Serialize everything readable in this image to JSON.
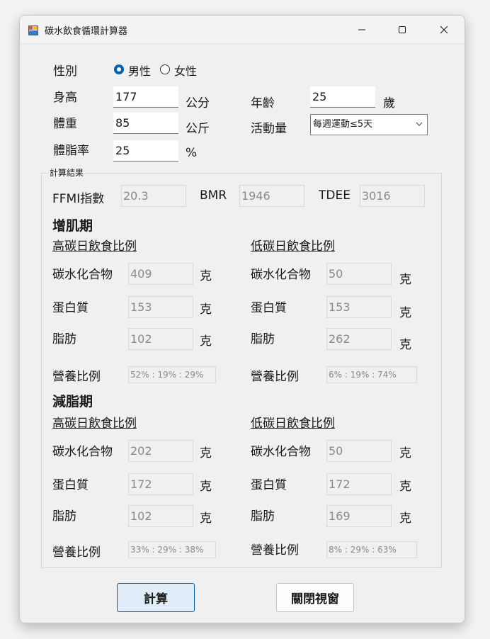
{
  "window": {
    "title": "碳水飲食循環計算器",
    "minimize_glyph": "—",
    "maximize_glyph": "☐",
    "close_glyph": "✕"
  },
  "form": {
    "gender_label": "性別",
    "gender_options": [
      "男性",
      "女性"
    ],
    "gender_selected": "男性",
    "height_label": "身高",
    "height_value": "177",
    "height_unit": "公分",
    "age_label": "年齡",
    "age_value": "25",
    "age_unit": "歲",
    "weight_label": "體重",
    "weight_value": "85",
    "weight_unit": "公斤",
    "activity_label": "活動量",
    "activity_selected": "每週運動≤5天",
    "bodyfat_label": "體脂率",
    "bodyfat_value": "25",
    "bodyfat_unit": "%"
  },
  "results": {
    "group_title": "計算結果",
    "ffmi_label": "FFMI指數",
    "ffmi_value": "20.3",
    "bmr_label": "BMR",
    "bmr_value": "1946",
    "tdee_label": "TDEE",
    "tdee_value": "3016"
  },
  "bulk": {
    "title": "增肌期",
    "high": {
      "title": "高碳日飲食比例",
      "carb_label": "碳水化合物",
      "carb_value": "409",
      "carb_unit": "克",
      "protein_label": "蛋白質",
      "protein_value": "153",
      "protein_unit": "克",
      "fat_label": "脂肪",
      "fat_value": "102",
      "fat_unit": "克",
      "ratio_label": "營養比例",
      "ratio_value": "52% : 19% : 29%"
    },
    "low": {
      "title": "低碳日飲食比例",
      "carb_label": "碳水化合物",
      "carb_value": "50",
      "carb_unit": "克",
      "protein_label": "蛋白質",
      "protein_value": "153",
      "protein_unit": "克",
      "fat_label": "脂肪",
      "fat_value": "262",
      "fat_unit": "克",
      "ratio_label": "營養比例",
      "ratio_value": "6% : 19% : 74%"
    }
  },
  "cut": {
    "title": "減脂期",
    "high": {
      "title": "高碳日飲食比例",
      "carb_label": "碳水化合物",
      "carb_value": "202",
      "carb_unit": "克",
      "protein_label": "蛋白質",
      "protein_value": "172",
      "protein_unit": "克",
      "fat_label": "脂肪",
      "fat_value": "102",
      "fat_unit": "克",
      "ratio_label": "營養比例",
      "ratio_value": "33% : 29% : 38%"
    },
    "low": {
      "title": "低碳日飲食比例",
      "carb_label": "碳水化合物",
      "carb_value": "50",
      "carb_unit": "克",
      "protein_label": "蛋白質",
      "protein_value": "172",
      "protein_unit": "克",
      "fat_label": "脂肪",
      "fat_value": "169",
      "fat_unit": "克",
      "ratio_label": "營養比例",
      "ratio_value": "8% : 29% : 63%"
    }
  },
  "buttons": {
    "calculate": "計算",
    "close": "關閉視窗"
  },
  "colors": {
    "accent": "#0063b1",
    "primary_button_bg": "#e1ecf8",
    "readonly_text": "#8a8a8a"
  }
}
